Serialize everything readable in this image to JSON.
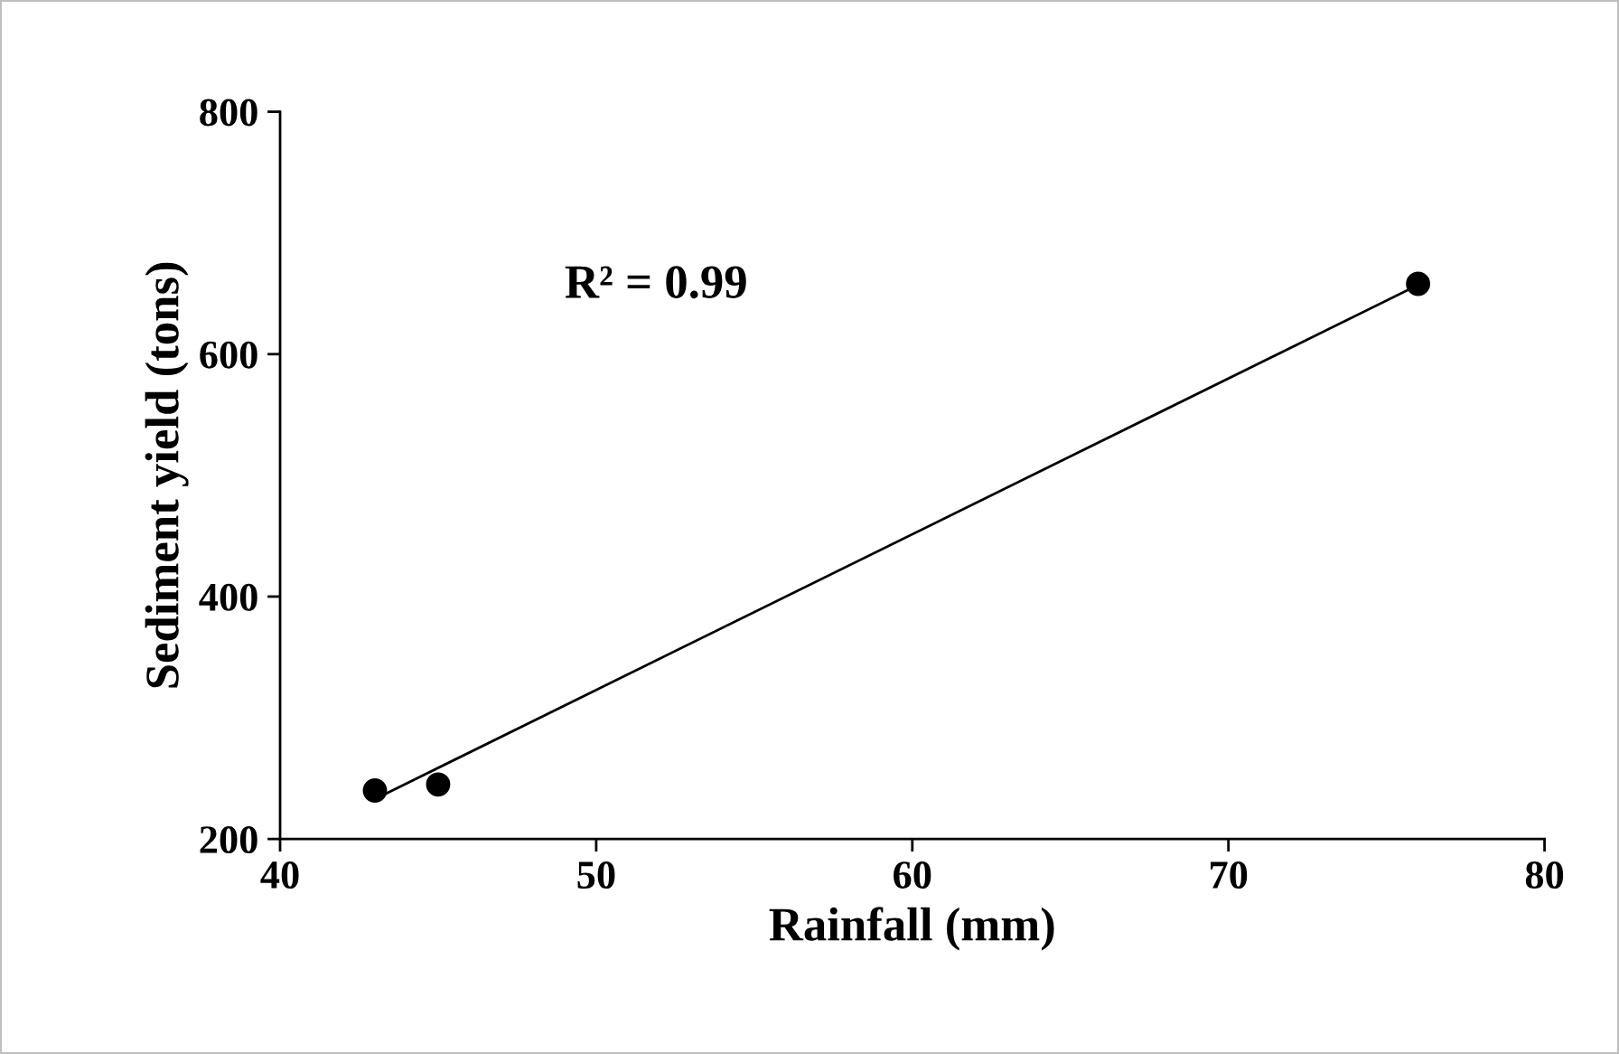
{
  "chart_data": {
    "type": "scatter",
    "xlabel": "Rainfall (mm)",
    "ylabel": "Sediment yield (tons)",
    "series": [
      {
        "color": "#000000",
        "x": [
          43,
          45,
          76
        ],
        "values": [
          240,
          245,
          658
        ],
        "marker": "circle"
      },
      {
        "type": "line",
        "color": "#000000",
        "x": [
          43,
          76
        ],
        "values": [
          233,
          657
        ],
        "marker": "none",
        "line_style": "solid"
      }
    ],
    "annotations": [
      "R² = 0.99"
    ],
    "xlim": [
      40,
      80
    ],
    "xticks": [
      40,
      50,
      60,
      70,
      80
    ],
    "ylim": [
      200,
      800
    ],
    "yticks": [
      200,
      400,
      600,
      800
    ],
    "grid": false,
    "legend": false
  }
}
